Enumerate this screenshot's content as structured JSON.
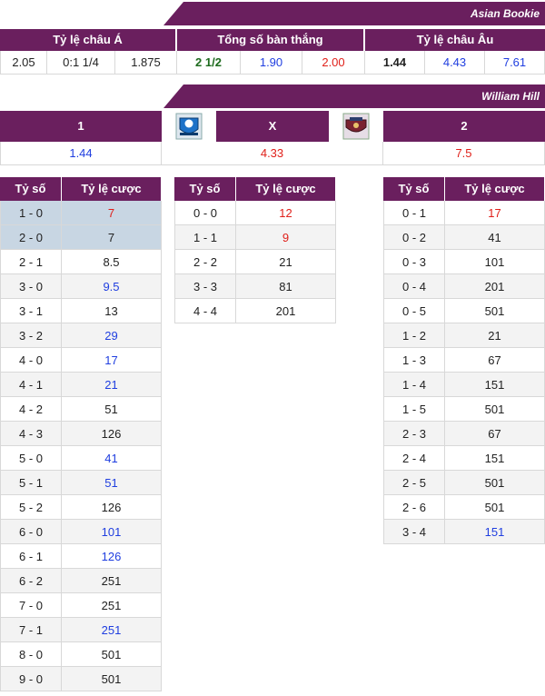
{
  "asian_bookie": {
    "title": "Asian Bookie",
    "groups": [
      "Tỷ lệ châu Á",
      "Tổng số bàn thắng",
      "Tỷ lệ châu Âu"
    ],
    "values": [
      "2.05",
      "0:1 1/4",
      "1.875",
      "2 1/2",
      "1.90",
      "2.00",
      "1.44",
      "4.43",
      "7.61"
    ]
  },
  "william_hill": {
    "title": "William Hill",
    "labels": [
      "1",
      "X",
      "2"
    ],
    "home_logo": "team-crest-icon",
    "away_logo": "team-crest-icon",
    "values": [
      "1.44",
      "4.33",
      "7.5"
    ]
  },
  "score_tables": {
    "header_score": "Tỷ số",
    "header_odds": "Tỷ lệ cược",
    "home_wins": [
      {
        "score": "1 - 0",
        "odds": "7"
      },
      {
        "score": "2 - 0",
        "odds": "7"
      },
      {
        "score": "2 - 1",
        "odds": "8.5"
      },
      {
        "score": "3 - 0",
        "odds": "9.5"
      },
      {
        "score": "3 - 1",
        "odds": "13"
      },
      {
        "score": "3 - 2",
        "odds": "29"
      },
      {
        "score": "4 - 0",
        "odds": "17"
      },
      {
        "score": "4 - 1",
        "odds": "21"
      },
      {
        "score": "4 - 2",
        "odds": "51"
      },
      {
        "score": "4 - 3",
        "odds": "126"
      },
      {
        "score": "5 - 0",
        "odds": "41"
      },
      {
        "score": "5 - 1",
        "odds": "51"
      },
      {
        "score": "5 - 2",
        "odds": "126"
      },
      {
        "score": "6 - 0",
        "odds": "101"
      },
      {
        "score": "6 - 1",
        "odds": "126"
      },
      {
        "score": "6 - 2",
        "odds": "251"
      },
      {
        "score": "7 - 0",
        "odds": "251"
      },
      {
        "score": "7 - 1",
        "odds": "251"
      },
      {
        "score": "8 - 0",
        "odds": "501"
      },
      {
        "score": "9 - 0",
        "odds": "501"
      }
    ],
    "draws": [
      {
        "score": "0 - 0",
        "odds": "12"
      },
      {
        "score": "1 - 1",
        "odds": "9"
      },
      {
        "score": "2 - 2",
        "odds": "21"
      },
      {
        "score": "3 - 3",
        "odds": "81"
      },
      {
        "score": "4 - 4",
        "odds": "201"
      }
    ],
    "away_wins": [
      {
        "score": "0 - 1",
        "odds": "17"
      },
      {
        "score": "0 - 2",
        "odds": "41"
      },
      {
        "score": "0 - 3",
        "odds": "101"
      },
      {
        "score": "0 - 4",
        "odds": "201"
      },
      {
        "score": "0 - 5",
        "odds": "501"
      },
      {
        "score": "1 - 2",
        "odds": "21"
      },
      {
        "score": "1 - 3",
        "odds": "67"
      },
      {
        "score": "1 - 4",
        "odds": "151"
      },
      {
        "score": "1 - 5",
        "odds": "501"
      },
      {
        "score": "2 - 3",
        "odds": "67"
      },
      {
        "score": "2 - 4",
        "odds": "151"
      },
      {
        "score": "2 - 5",
        "odds": "501"
      },
      {
        "score": "2 - 6",
        "odds": "501"
      },
      {
        "score": "3 - 4",
        "odds": "151"
      }
    ]
  },
  "colors": {
    "header_bg": "#6a1f5e",
    "highlight_bg": "#c8d6e3",
    "blue": "#1f3ee0",
    "red": "#e0201a"
  }
}
